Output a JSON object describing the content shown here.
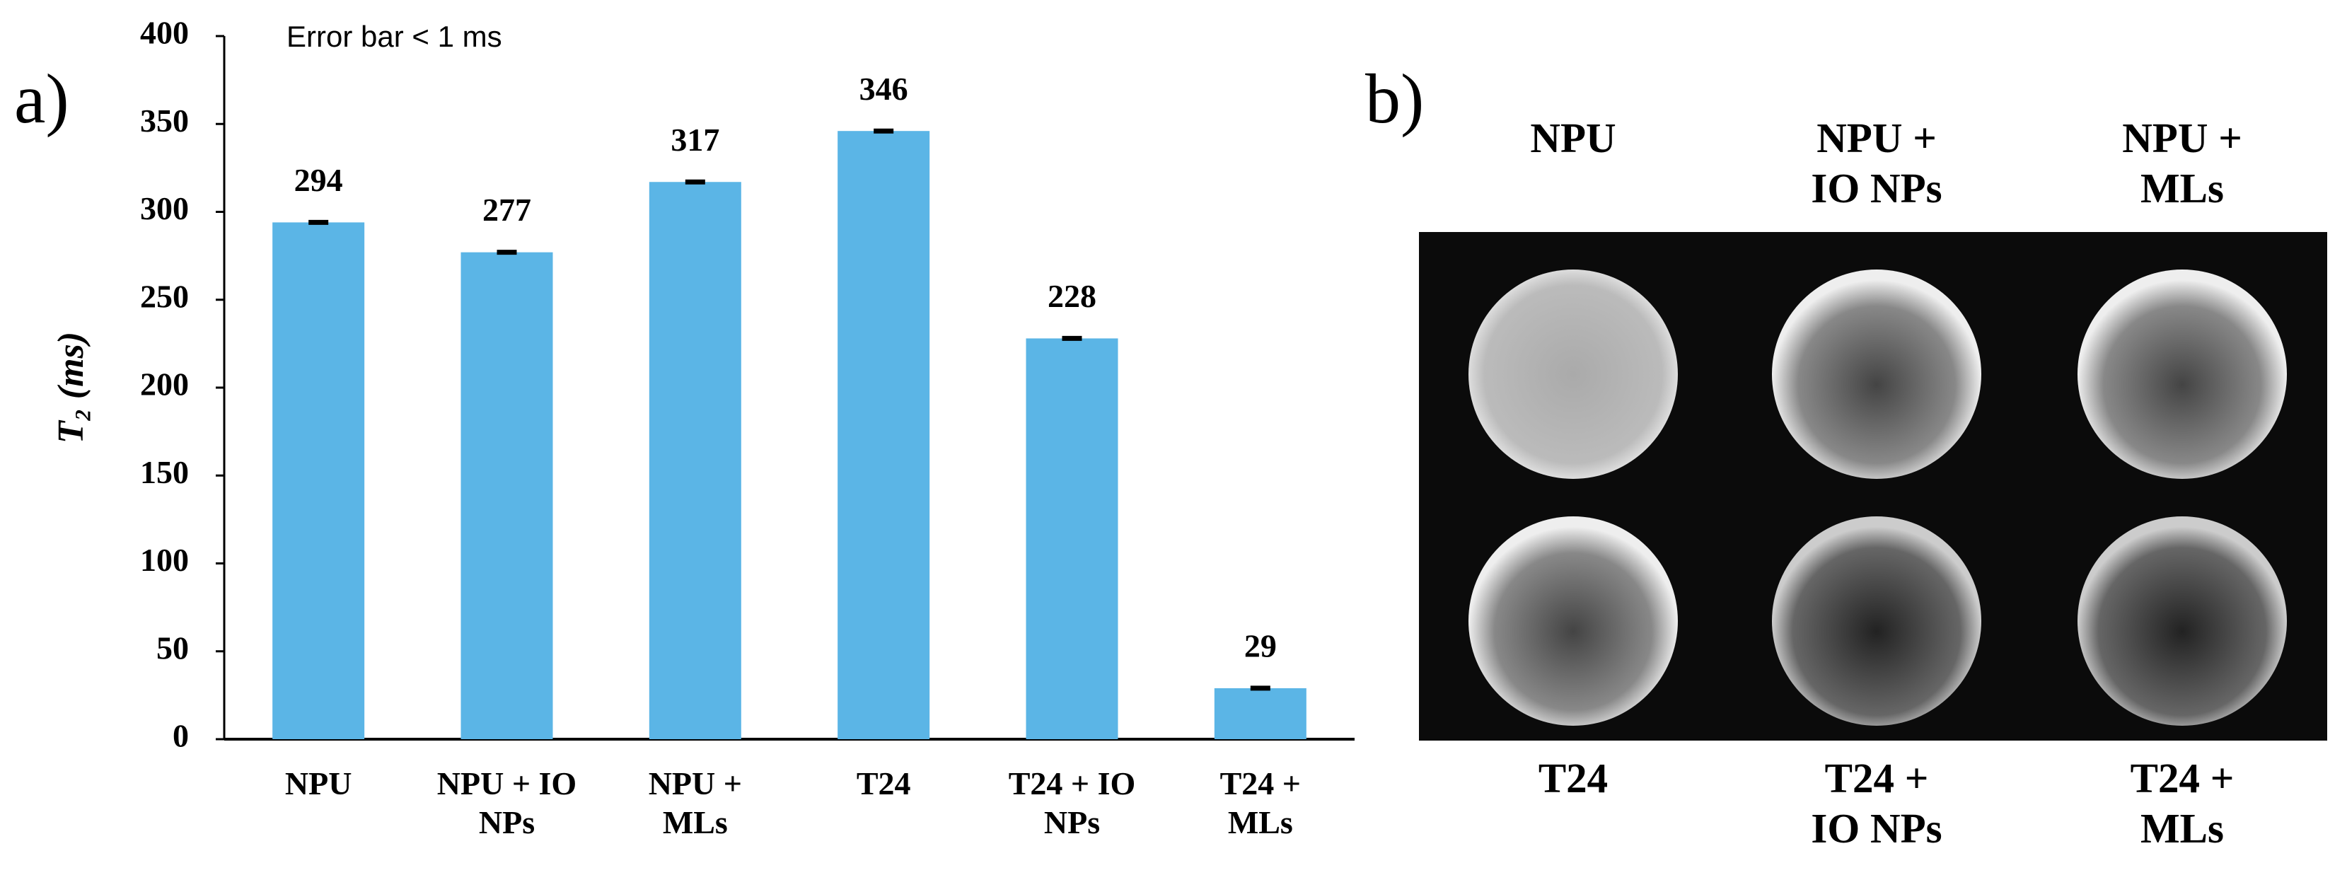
{
  "chart_data": {
    "type": "bar",
    "panel_label": "a)",
    "annotation": "Error bar < 1 ms",
    "y_label": "T₂ (ms)",
    "categories": [
      "NPU",
      "NPU + IO NPs",
      "NPU + MLs",
      "T24",
      "T24 + IO NPs",
      "T24 + MLs"
    ],
    "values": [
      294,
      277,
      317,
      346,
      228,
      29
    ],
    "errors": [
      1,
      1,
      1,
      1,
      1,
      1
    ],
    "color": "#5bb5e6",
    "ylim": [
      0,
      400
    ],
    "yticks": [
      0,
      50,
      100,
      150,
      200,
      250,
      300,
      350,
      400
    ],
    "grid": false
  },
  "panel_b": {
    "panel_label": "b)",
    "top_labels": [
      "NPU",
      "NPU + IO NPs",
      "NPU + MLs"
    ],
    "bottom_labels": [
      "T24",
      "T24 + IO NPs",
      "T24 + MLs"
    ]
  }
}
